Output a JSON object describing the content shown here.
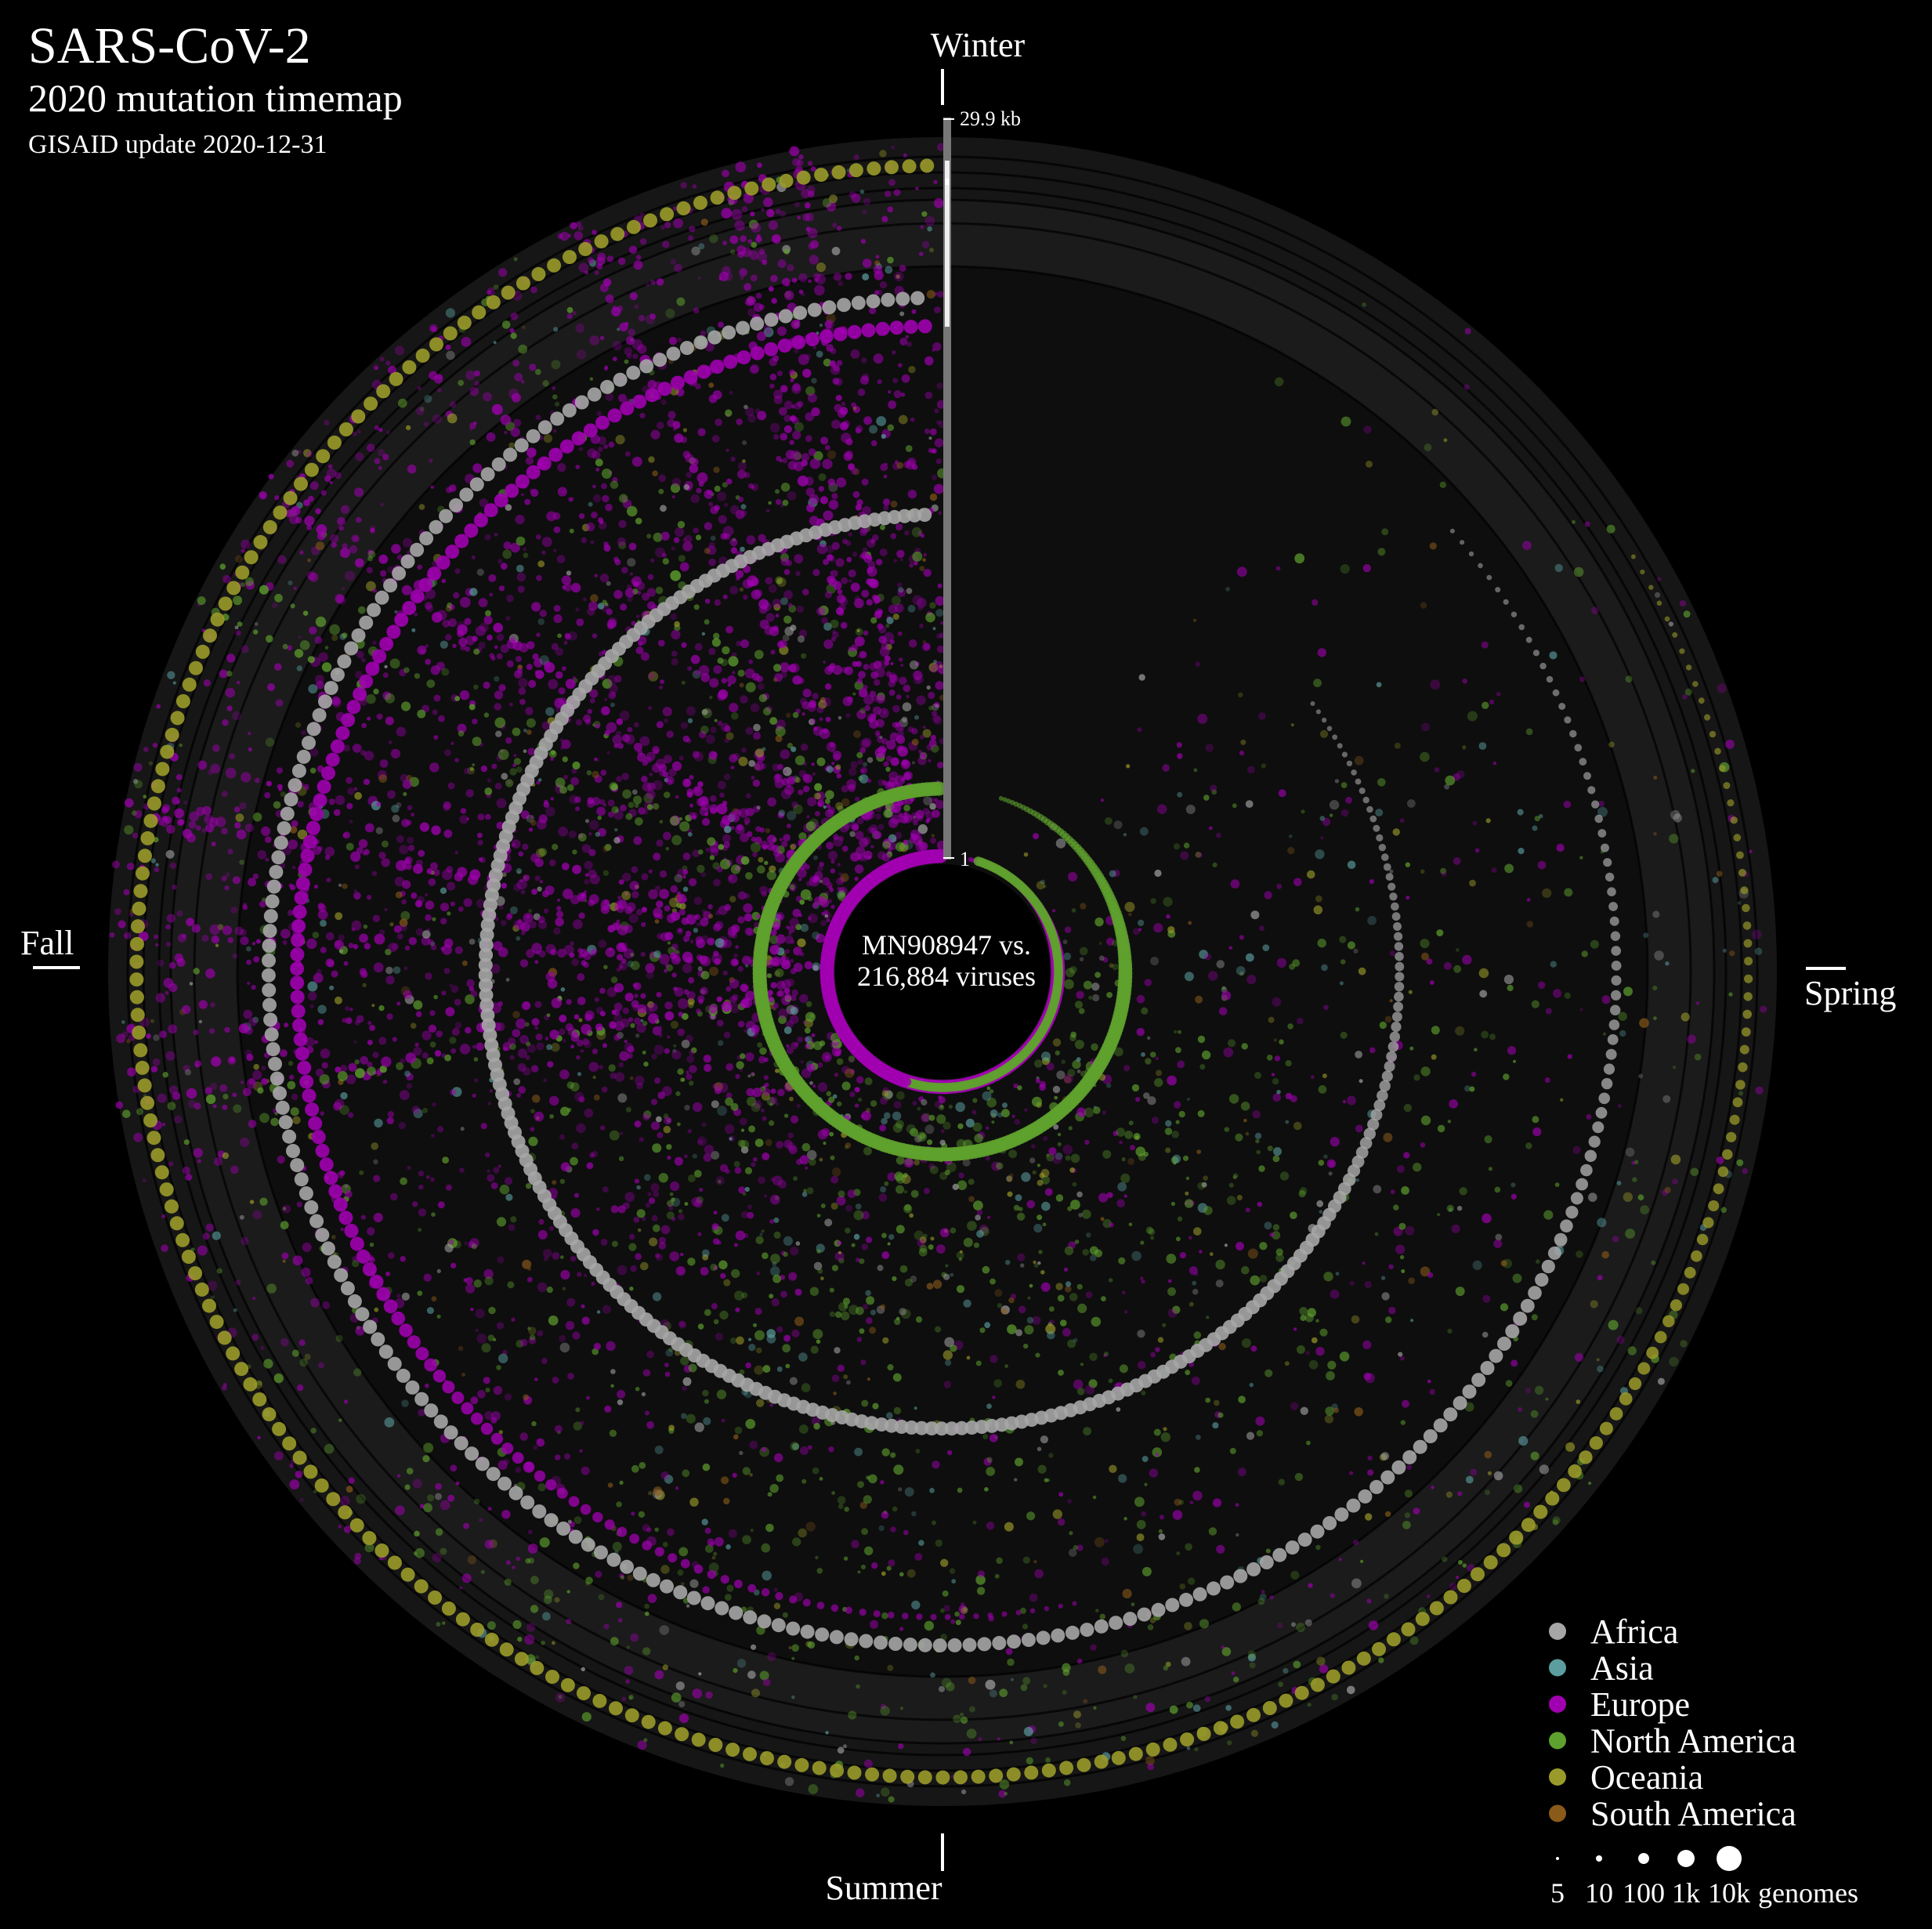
{
  "header": {
    "title": "SARS-CoV-2",
    "subtitle": "2020 mutation timemap",
    "update_note": "GISAID update 2020-12-31"
  },
  "seasons": {
    "winter": "Winter",
    "spring": "Spring",
    "summer": "Summer",
    "fall": "Fall"
  },
  "center": {
    "line1": "MN908947 vs.",
    "line2": "216,884 viruses"
  },
  "genome_axis": {
    "top_label": "29.9 kb",
    "bottom_label": "1"
  },
  "legend": {
    "regions": [
      {
        "name": "Africa",
        "color": "#a6a6a6"
      },
      {
        "name": "Asia",
        "color": "#5c9ea0"
      },
      {
        "name": "Europe",
        "color": "#a000b0"
      },
      {
        "name": "North America",
        "color": "#5fa12e"
      },
      {
        "name": "Oceania",
        "color": "#9a9a2a"
      },
      {
        "name": "South America",
        "color": "#8a5a1a"
      }
    ],
    "sizes": {
      "labels": [
        "5",
        "10",
        "100",
        "1k",
        "10k"
      ],
      "values": [
        5,
        10,
        100,
        1000,
        10000
      ],
      "unit": "genomes"
    }
  },
  "chart_data": {
    "type": "scatter",
    "title": "SARS-CoV-2",
    "subtitle": "2020 mutation timemap",
    "reference": "MN908947",
    "virus_count": 216884,
    "time_axis": {
      "kind": "angular",
      "range": [
        "2020-01-01",
        "2020-12-31"
      ],
      "season_labels": [
        "Winter",
        "Spring",
        "Summer",
        "Fall"
      ]
    },
    "genome_axis": {
      "kind": "radial",
      "range_bases": [
        1,
        29900
      ],
      "tick_labels": [
        "1",
        "29.9 kb"
      ]
    },
    "series": [
      {
        "name": "Africa",
        "color": "#a6a6a6"
      },
      {
        "name": "Asia",
        "color": "#5c9ea0"
      },
      {
        "name": "Europe",
        "color": "#a000b0"
      },
      {
        "name": "North America",
        "color": "#5fa12e"
      },
      {
        "name": "Oceania",
        "color": "#9a9a2a"
      },
      {
        "name": "South America",
        "color": "#8a5a1a"
      }
    ],
    "prominent_mutations": [
      {
        "position": 241,
        "start": "2020-01-15",
        "end": "2020-12-31",
        "region": "Europe"
      },
      {
        "position": 3037,
        "start": "2020-01-20",
        "end": "2020-12-31",
        "region": "North America"
      },
      {
        "position": 23403,
        "start": "2020-02-20",
        "end": "2020-12-31",
        "region": "Africa"
      },
      {
        "position": 14408,
        "start": "2020-02-25",
        "end": "2020-12-31",
        "region": "Africa"
      },
      {
        "position": 28881,
        "start": "2020-03-01",
        "end": "2020-12-31",
        "region": "Oceania"
      },
      {
        "position": 22227,
        "start": "2020-06-20",
        "end": "2020-12-31",
        "region": "Europe"
      }
    ],
    "legend_placement": "bottom-right",
    "size_encoding": {
      "values": [
        5,
        10,
        100,
        1000,
        10000
      ],
      "unit": "genomes"
    }
  }
}
